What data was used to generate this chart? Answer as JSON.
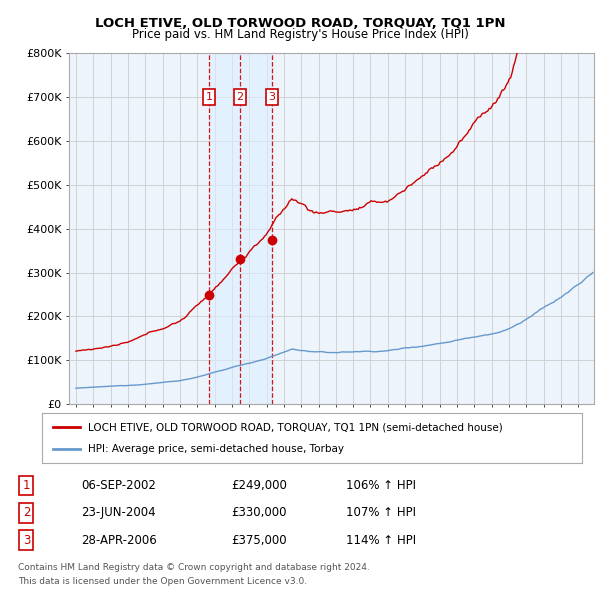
{
  "title": "LOCH ETIVE, OLD TORWOOD ROAD, TORQUAY, TQ1 1PN",
  "subtitle": "Price paid vs. HM Land Registry's House Price Index (HPI)",
  "legend_line1": "LOCH ETIVE, OLD TORWOOD ROAD, TORQUAY, TQ1 1PN (semi-detached house)",
  "legend_line2": "HPI: Average price, semi-detached house, Torbay",
  "footer1": "Contains HM Land Registry data © Crown copyright and database right 2024.",
  "footer2": "This data is licensed under the Open Government Licence v3.0.",
  "transactions": [
    {
      "num": 1,
      "date": "06-SEP-2002",
      "price": "£249,000",
      "hpi": "106% ↑ HPI",
      "year": 2002.68
    },
    {
      "num": 2,
      "date": "23-JUN-2004",
      "price": "£330,000",
      "hpi": "107% ↑ HPI",
      "year": 2004.47
    },
    {
      "num": 3,
      "date": "28-APR-2006",
      "price": "£375,000",
      "hpi": "114% ↑ HPI",
      "year": 2006.32
    }
  ],
  "trans_prices": [
    249000,
    330000,
    375000
  ],
  "red_color": "#cc0000",
  "blue_color": "#6699cc",
  "shade_color": "#ddeeff",
  "vline_color": "#cc0000",
  "grid_color": "#cccccc",
  "background_color": "#ffffff",
  "chart_bg": "#eef4fb",
  "ylim": [
    0,
    800000
  ],
  "yticks": [
    0,
    100000,
    200000,
    300000,
    400000,
    500000,
    600000,
    700000,
    800000
  ],
  "ytick_labels": [
    "£0",
    "£100K",
    "£200K",
    "£300K",
    "£400K",
    "£500K",
    "£600K",
    "£700K",
    "£800K"
  ],
  "xstart": 1995,
  "xend": 2024
}
